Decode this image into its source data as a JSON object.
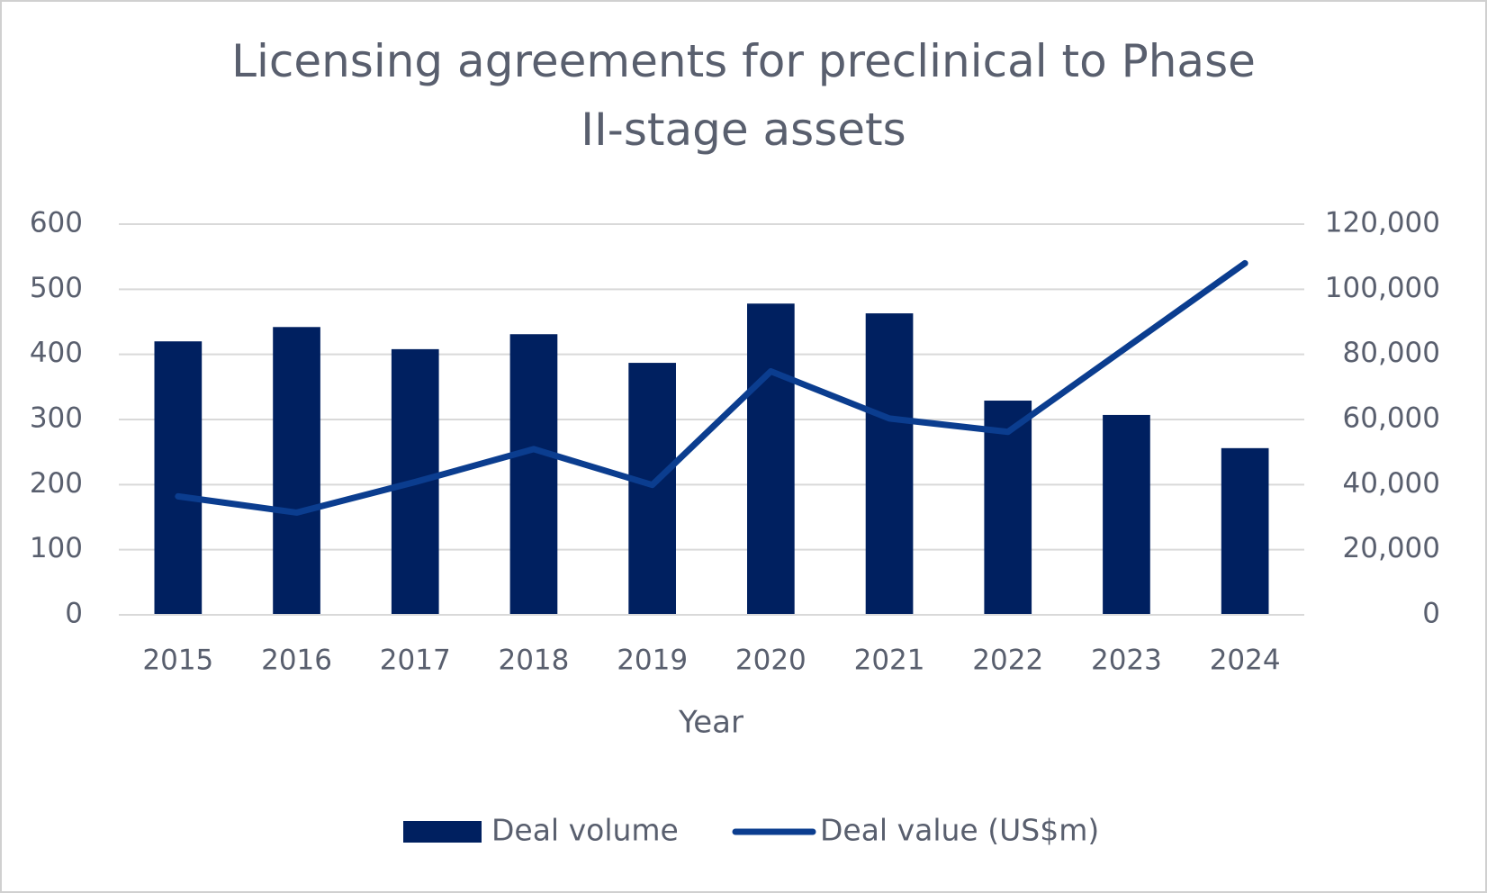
{
  "chart_data": {
    "type": "bar-line",
    "title": "Licensing agreements for preclinical to Phase II-stage assets",
    "x_label": "Year",
    "categories": [
      "2015",
      "2016",
      "2017",
      "2018",
      "2019",
      "2020",
      "2021",
      "2022",
      "2023",
      "2024"
    ],
    "series": [
      {
        "name": "Deal volume",
        "type": "bar",
        "color": "#002060",
        "axis": "y",
        "values": [
          420,
          442,
          408,
          431,
          387,
          478,
          463,
          329,
          307,
          256
        ]
      },
      {
        "name": "Deal value (US$m)",
        "type": "line",
        "color": "#0b3d8f",
        "axis": "y2",
        "values": [
          36400,
          31400,
          40800,
          50900,
          39900,
          74800,
          60300,
          56200,
          82100,
          108000
        ]
      }
    ],
    "ylim": [
      0,
      600
    ],
    "yticks": [
      0,
      100,
      200,
      300,
      400,
      500,
      600
    ],
    "y2lim": [
      0,
      120000
    ],
    "y2ticks": [
      0,
      {
        "value": 20000,
        "label": "20,000"
      },
      {
        "value": 40000,
        "label": "40,000"
      },
      {
        "value": 60000,
        "label": "60,000"
      },
      {
        "value": 80000,
        "label": "80,000"
      },
      {
        "value": 100000,
        "label": "100,000"
      },
      {
        "value": 120000,
        "label": "120,000"
      }
    ],
    "grid": true,
    "legend": "bottom"
  }
}
